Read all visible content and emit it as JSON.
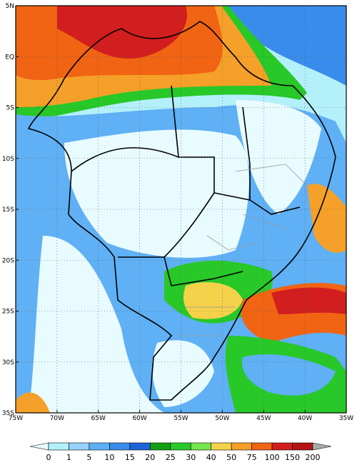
{
  "map": {
    "lat_labels": [
      "5N",
      "EQ",
      "5S",
      "10S",
      "15S",
      "20S",
      "25S",
      "30S",
      "35S"
    ],
    "lon_labels": [
      "75W",
      "70W",
      "65W",
      "60W",
      "55W",
      "50W",
      "45W",
      "40W",
      "35W"
    ],
    "colorbar": {
      "levels": [
        0,
        1,
        5,
        10,
        15,
        20,
        25,
        30,
        40,
        50,
        75,
        100,
        150,
        200
      ],
      "colors": [
        "#e8fbff",
        "#b4f0fa",
        "#96d2fa",
        "#5fb0f5",
        "#3a8cec",
        "#1e64d6",
        "#14a014",
        "#28c828",
        "#78e650",
        "#f5d24a",
        "#f5a028",
        "#f06414",
        "#d21e1e",
        "#b41414",
        "#aaaaaa"
      ]
    }
  }
}
